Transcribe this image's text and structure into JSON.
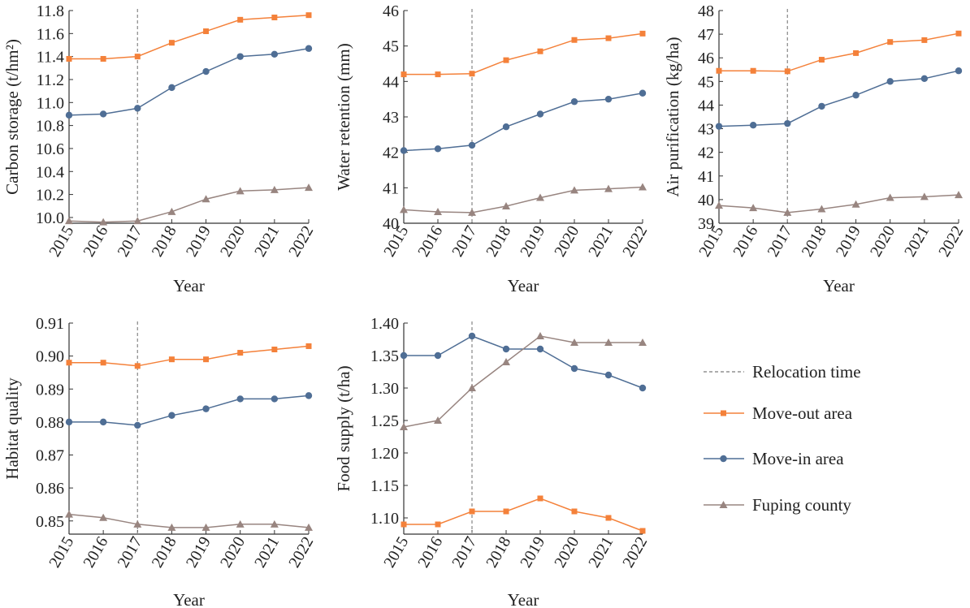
{
  "colors": {
    "move_out": "#F4813A",
    "move_in": "#4F6E95",
    "fuping": "#988580",
    "relocation": "#909090",
    "axis": "#333333"
  },
  "legend": {
    "relocation_label": "Relocation time",
    "move_out_label": "Move-out area",
    "move_in_label": "Move-in area",
    "fuping_label": "Fuping county"
  },
  "chart_data": [
    {
      "type": "line",
      "xlabel": "Year",
      "ylabel": "Carbon storage (t/hm²)",
      "x": [
        "2015",
        "2016",
        "2017",
        "2018",
        "2019",
        "2020",
        "2021",
        "2022"
      ],
      "ylim": [
        9.95,
        11.8
      ],
      "yticks": [
        "10.0",
        "10.2",
        "10.4",
        "10.6",
        "10.8",
        "11.0",
        "11.2",
        "11.4",
        "11.6",
        "11.8"
      ],
      "relocation_year": "2017",
      "series": [
        {
          "name": "Move-out area",
          "values": [
            11.38,
            11.38,
            11.4,
            11.52,
            11.62,
            11.72,
            11.74,
            11.76
          ]
        },
        {
          "name": "Move-in area",
          "values": [
            10.89,
            10.9,
            10.95,
            11.13,
            11.27,
            11.4,
            11.42,
            11.47
          ]
        },
        {
          "name": "Fuping county",
          "values": [
            9.97,
            9.96,
            9.97,
            10.05,
            10.16,
            10.23,
            10.24,
            10.26
          ]
        }
      ]
    },
    {
      "type": "line",
      "xlabel": "Year",
      "ylabel": "Water retention (mm)",
      "x": [
        "2015",
        "2016",
        "2017",
        "2018",
        "2019",
        "2020",
        "2021",
        "2022"
      ],
      "ylim": [
        40,
        46
      ],
      "yticks": [
        "40",
        "41",
        "42",
        "43",
        "44",
        "45",
        "46"
      ],
      "relocation_year": "2017",
      "series": [
        {
          "name": "Move-out area",
          "values": [
            44.2,
            44.2,
            44.22,
            44.6,
            44.85,
            45.17,
            45.22,
            45.35
          ]
        },
        {
          "name": "Move-in area",
          "values": [
            42.05,
            42.1,
            42.2,
            42.72,
            43.08,
            43.43,
            43.5,
            43.67
          ]
        },
        {
          "name": "Fuping county",
          "values": [
            40.38,
            40.32,
            40.3,
            40.48,
            40.72,
            40.93,
            40.97,
            41.02
          ]
        }
      ]
    },
    {
      "type": "line",
      "xlabel": "Year",
      "ylabel": "Air purification (kg/ha)",
      "x": [
        "2015",
        "2016",
        "2017",
        "2018",
        "2019",
        "2020",
        "2021",
        "2022"
      ],
      "ylim": [
        39,
        48
      ],
      "yticks": [
        "39",
        "40",
        "41",
        "42",
        "43",
        "44",
        "45",
        "46",
        "47",
        "48"
      ],
      "relocation_year": "2017",
      "series": [
        {
          "name": "Move-out area",
          "values": [
            45.45,
            45.45,
            45.43,
            45.92,
            46.2,
            46.67,
            46.75,
            47.03
          ]
        },
        {
          "name": "Move-in area",
          "values": [
            43.1,
            43.15,
            43.22,
            43.95,
            44.42,
            45.0,
            45.12,
            45.45
          ]
        },
        {
          "name": "Fuping county",
          "values": [
            39.75,
            39.65,
            39.45,
            39.6,
            39.8,
            40.08,
            40.12,
            40.2
          ]
        }
      ]
    },
    {
      "type": "line",
      "xlabel": "Year",
      "ylabel": "Habitat quality",
      "x": [
        "2015",
        "2016",
        "2017",
        "2018",
        "2019",
        "2020",
        "2021",
        "2022"
      ],
      "ylim": [
        0.846,
        0.91
      ],
      "yticks": [
        "0.85",
        "0.86",
        "0.87",
        "0.88",
        "0.89",
        "0.90",
        "0.91"
      ],
      "relocation_year": "2017",
      "series": [
        {
          "name": "Move-out area",
          "values": [
            0.898,
            0.898,
            0.897,
            0.899,
            0.899,
            0.901,
            0.902,
            0.903
          ]
        },
        {
          "name": "Move-in area",
          "values": [
            0.88,
            0.88,
            0.879,
            0.882,
            0.884,
            0.887,
            0.887,
            0.888
          ]
        },
        {
          "name": "Fuping county",
          "values": [
            0.852,
            0.851,
            0.849,
            0.848,
            0.848,
            0.849,
            0.849,
            0.848
          ]
        }
      ]
    },
    {
      "type": "line",
      "xlabel": "Year",
      "ylabel": "Food supply (t/ha)",
      "x": [
        "2015",
        "2016",
        "2017",
        "2018",
        "2019",
        "2020",
        "2021",
        "2022"
      ],
      "ylim": [
        1.075,
        1.4
      ],
      "yticks": [
        "1.10",
        "1.15",
        "1.20",
        "1.25",
        "1.30",
        "1.35",
        "1.40"
      ],
      "relocation_year": "2017",
      "series": [
        {
          "name": "Move-out area",
          "values": [
            1.09,
            1.09,
            1.11,
            1.11,
            1.13,
            1.11,
            1.1,
            1.08
          ]
        },
        {
          "name": "Move-in area",
          "values": [
            1.35,
            1.35,
            1.38,
            1.36,
            1.36,
            1.33,
            1.32,
            1.3
          ]
        },
        {
          "name": "Fuping county",
          "values": [
            1.24,
            1.25,
            1.3,
            1.34,
            1.38,
            1.37,
            1.37,
            1.37
          ]
        }
      ]
    }
  ]
}
